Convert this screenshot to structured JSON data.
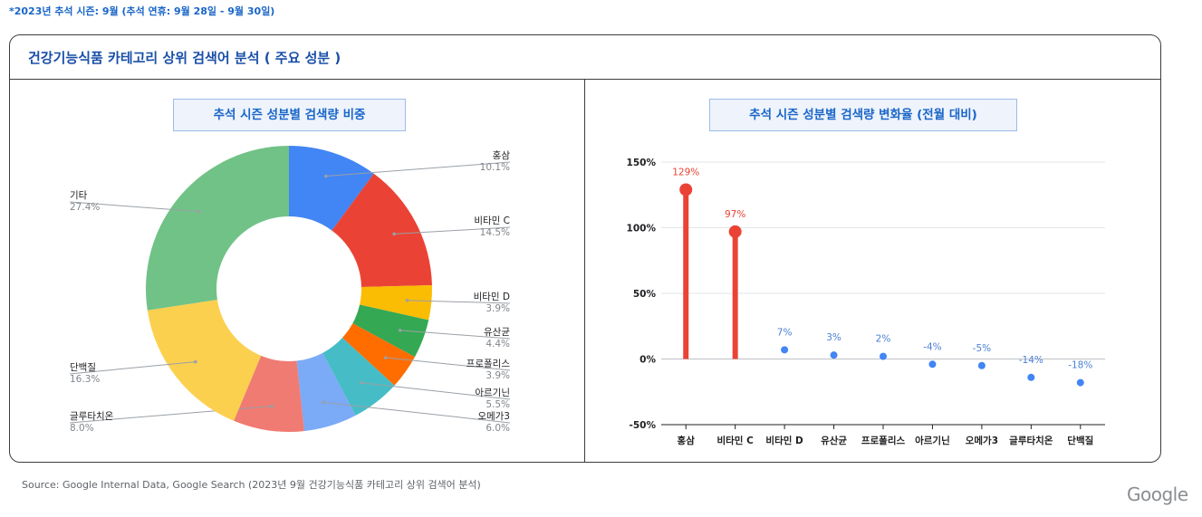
{
  "note": "*2023년 추석 시즌: 9월 (추석 연휴: 9월 28일 - 9월 30일)",
  "panel_title": "건강기능식품 카테고리 상위 검색어 분석 ( 주요 성분 )",
  "source": "Source: Google Internal Data, Google Search (2023년 9월 건강기능식품 카테고리 상위 검색어 분석)",
  "logo": "Google",
  "chart_data": [
    {
      "type": "pie",
      "title": "추석 시즌 성분별 검색량 비중",
      "categories": [
        "홍삼",
        "비타민 C",
        "비타민 D",
        "유산균",
        "프로폴리스",
        "아르기닌",
        "오메가3",
        "글루타치온",
        "단백질",
        "기타"
      ],
      "values": [
        10.1,
        14.5,
        3.9,
        4.4,
        3.9,
        5.5,
        6.0,
        8.0,
        16.3,
        27.4
      ],
      "value_labels": [
        "10.1%",
        "14.5%",
        "3.9%",
        "4.4%",
        "3.9%",
        "5.5%",
        "6.0%",
        "8.0%",
        "16.3%",
        "27.4%"
      ],
      "colors": [
        "#4285f4",
        "#ea4335",
        "#fbbc04",
        "#34a853",
        "#ff6d01",
        "#46bdc6",
        "#7baaf7",
        "#f07b72",
        "#fcd04f",
        "#71c287"
      ],
      "donut": true
    },
    {
      "type": "scatter",
      "style": "lollipop",
      "title": "추석 시즌 성분별 검색량 변화율 (전월 대비)",
      "categories": [
        "홍삼",
        "비타민 C",
        "비타민 D",
        "유산균",
        "프로폴리스",
        "아르기닌",
        "오메가3",
        "글루타치온",
        "단백질"
      ],
      "values": [
        129,
        97,
        7,
        3,
        2,
        -4,
        -5,
        -14,
        -18
      ],
      "value_labels": [
        "129%",
        "97%",
        "7%",
        "3%",
        "2%",
        "-4%",
        "-5%",
        "-14%",
        "-18%"
      ],
      "highlight": [
        true,
        true,
        false,
        false,
        false,
        false,
        false,
        false,
        false
      ],
      "ylim": [
        -50,
        150
      ],
      "yticks": [
        -50,
        0,
        50,
        100,
        150
      ],
      "ytick_labels": [
        "-50%",
        "0%",
        "50%",
        "100%",
        "150%"
      ],
      "grid": true,
      "colors": {
        "highlight": "#ea4335",
        "normal": "#4285f4",
        "normal_label": "#4a7fd4"
      }
    }
  ]
}
